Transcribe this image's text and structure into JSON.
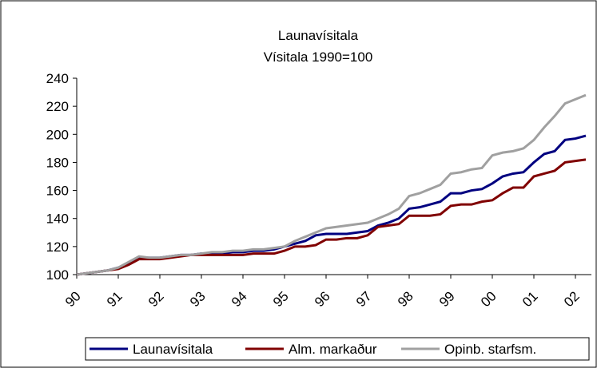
{
  "chart_data": {
    "type": "line",
    "title": "Launavísitala",
    "subtitle": "Vísitala 1990=100",
    "categories": [
      "90",
      null,
      null,
      null,
      "91",
      null,
      null,
      null,
      "92",
      null,
      null,
      null,
      "93",
      null,
      null,
      null,
      "94",
      null,
      null,
      null,
      "95",
      null,
      null,
      null,
      "96",
      null,
      null,
      null,
      "97",
      null,
      null,
      null,
      "98",
      null,
      null,
      null,
      "99",
      null,
      null,
      null,
      "00",
      null,
      null,
      null,
      "01",
      null,
      null,
      null,
      "02",
      null
    ],
    "series": [
      {
        "name": "Launavísitala",
        "color": "#000080",
        "values": [
          100,
          101,
          102,
          103,
          105,
          108,
          112,
          112,
          112,
          113,
          114,
          114,
          115,
          115,
          115,
          116,
          116,
          117,
          117,
          118,
          120,
          122,
          124,
          128,
          129,
          129,
          129,
          130,
          131,
          135,
          137,
          140,
          147,
          148,
          150,
          152,
          158,
          158,
          160,
          161,
          165,
          170,
          172,
          173,
          180,
          186,
          188,
          196,
          197,
          199
        ]
      },
      {
        "name": "Alm. markaður",
        "color": "#800000",
        "values": [
          100,
          101,
          102,
          103,
          104,
          107,
          111,
          111,
          111,
          112,
          113,
          114,
          114,
          114,
          114,
          114,
          114,
          115,
          115,
          115,
          117,
          120,
          120,
          121,
          125,
          125,
          126,
          126,
          128,
          134,
          135,
          136,
          142,
          142,
          142,
          143,
          149,
          150,
          150,
          152,
          153,
          158,
          162,
          162,
          170,
          172,
          174,
          180,
          181,
          182
        ]
      },
      {
        "name": "Opinb. starfsm.",
        "color": "#a0a0a0",
        "values": [
          100,
          101,
          102,
          103,
          105,
          109,
          113,
          112,
          112,
          113,
          114,
          114,
          115,
          116,
          116,
          117,
          117,
          118,
          118,
          119,
          120,
          124,
          127,
          130,
          133,
          134,
          135,
          136,
          137,
          140,
          143,
          147,
          156,
          158,
          161,
          164,
          172,
          173,
          175,
          176,
          185,
          187,
          188,
          190,
          196,
          205,
          213,
          222,
          225,
          228
        ]
      }
    ],
    "ylim": [
      100,
      240
    ],
    "yticks": [
      100,
      120,
      140,
      160,
      180,
      200,
      220,
      240
    ],
    "grid": false,
    "legend": "bottom"
  }
}
